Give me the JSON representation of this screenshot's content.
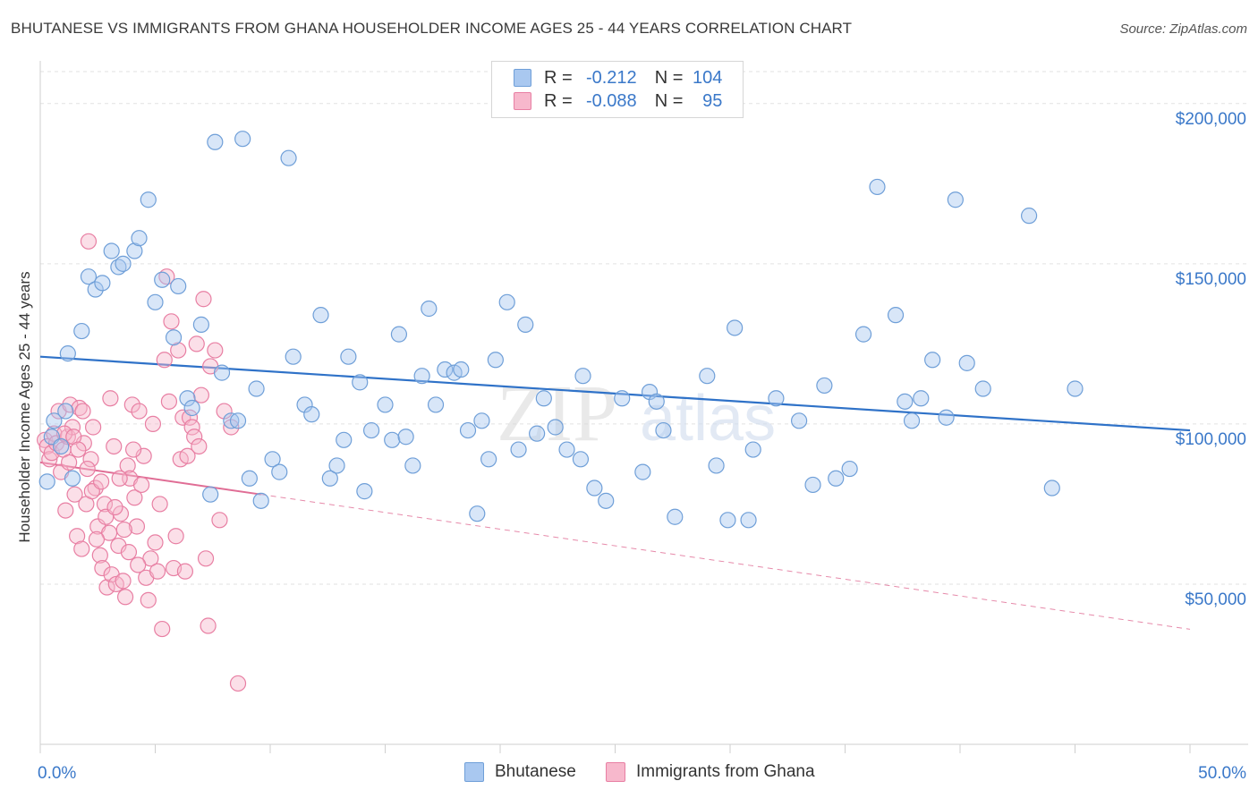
{
  "title": "BHUTANESE VS IMMIGRANTS FROM GHANA HOUSEHOLDER INCOME AGES 25 - 44 YEARS CORRELATION CHART",
  "source": "Source: ZipAtlas.com",
  "watermark": {
    "zip": "ZIP",
    "atlas": "atlas"
  },
  "legend": {
    "r_label": "R =",
    "n_label": "N =",
    "rows": [
      {
        "r": "-0.212",
        "n": "104"
      },
      {
        "r": "-0.088",
        "n": "95"
      }
    ]
  },
  "colors": {
    "blue_fill": "#a9c8f0",
    "blue_stroke": "#6f9fd8",
    "blue_line": "#2f72c8",
    "pink_fill": "#f7b8cc",
    "pink_stroke": "#e87fa3",
    "pink_line": "#e06d95",
    "axis_text": "#3a78c9",
    "grid": "#e2e2e2"
  },
  "chart_data": {
    "type": "scatter",
    "title": "BHUTANESE VS IMMIGRANTS FROM GHANA HOUSEHOLDER INCOME AGES 25 - 44 YEARS CORRELATION CHART",
    "xlabel": "",
    "ylabel": "Householder Income Ages 25 - 44 years",
    "xlim": [
      0,
      50
    ],
    "ylim": [
      0,
      210000
    ],
    "x_tick_labels": [
      "0.0%",
      "50.0%"
    ],
    "y_ticks": [
      50000,
      100000,
      150000,
      200000
    ],
    "y_tick_labels": [
      "$50,000",
      "$100,000",
      "$150,000",
      "$200,000"
    ],
    "grid": true,
    "legend_position": "top-center",
    "series": [
      {
        "name": "Bhutanese",
        "trend": {
          "x0": 0,
          "y0": 121000,
          "x1": 50,
          "y1": 98000,
          "dashed_to": 50
        },
        "points": [
          [
            0.5,
            96000
          ],
          [
            0.6,
            101000
          ],
          [
            0.9,
            93000
          ],
          [
            1.1,
            104000
          ],
          [
            1.2,
            122000
          ],
          [
            1.4,
            83000
          ],
          [
            1.8,
            129000
          ],
          [
            2.1,
            146000
          ],
          [
            2.4,
            142000
          ],
          [
            2.7,
            144000
          ],
          [
            3.1,
            154000
          ],
          [
            3.4,
            149000
          ],
          [
            3.6,
            150000
          ],
          [
            4.1,
            154000
          ],
          [
            4.3,
            158000
          ],
          [
            4.7,
            170000
          ],
          [
            5.0,
            138000
          ],
          [
            5.3,
            145000
          ],
          [
            5.8,
            127000
          ],
          [
            6.0,
            143000
          ],
          [
            6.4,
            108000
          ],
          [
            6.6,
            105000
          ],
          [
            7.0,
            131000
          ],
          [
            7.4,
            78000
          ],
          [
            7.6,
            188000
          ],
          [
            7.9,
            116000
          ],
          [
            8.3,
            101000
          ],
          [
            8.6,
            101000
          ],
          [
            8.8,
            189000
          ],
          [
            9.1,
            83000
          ],
          [
            9.4,
            111000
          ],
          [
            9.6,
            76000
          ],
          [
            10.1,
            89000
          ],
          [
            10.4,
            85000
          ],
          [
            10.8,
            183000
          ],
          [
            11.0,
            121000
          ],
          [
            11.5,
            106000
          ],
          [
            11.8,
            103000
          ],
          [
            12.2,
            134000
          ],
          [
            12.6,
            83000
          ],
          [
            12.9,
            87000
          ],
          [
            13.2,
            95000
          ],
          [
            13.4,
            121000
          ],
          [
            13.9,
            113000
          ],
          [
            14.1,
            79000
          ],
          [
            14.4,
            98000
          ],
          [
            15.0,
            106000
          ],
          [
            15.3,
            95000
          ],
          [
            15.6,
            128000
          ],
          [
            15.9,
            96000
          ],
          [
            16.2,
            87000
          ],
          [
            16.6,
            115000
          ],
          [
            16.9,
            136000
          ],
          [
            17.2,
            106000
          ],
          [
            17.6,
            117000
          ],
          [
            18.0,
            116000
          ],
          [
            18.3,
            117000
          ],
          [
            18.6,
            98000
          ],
          [
            19.0,
            72000
          ],
          [
            19.2,
            101000
          ],
          [
            19.5,
            89000
          ],
          [
            19.8,
            120000
          ],
          [
            20.3,
            138000
          ],
          [
            20.8,
            92000
          ],
          [
            21.1,
            131000
          ],
          [
            21.6,
            97000
          ],
          [
            21.9,
            108000
          ],
          [
            22.4,
            99000
          ],
          [
            22.9,
            92000
          ],
          [
            23.5,
            89000
          ],
          [
            23.6,
            115000
          ],
          [
            24.1,
            80000
          ],
          [
            24.6,
            76000
          ],
          [
            25.3,
            108000
          ],
          [
            26.2,
            85000
          ],
          [
            26.5,
            110000
          ],
          [
            26.8,
            107000
          ],
          [
            27.1,
            98000
          ],
          [
            27.6,
            71000
          ],
          [
            29.0,
            115000
          ],
          [
            29.4,
            87000
          ],
          [
            29.9,
            70000
          ],
          [
            30.2,
            130000
          ],
          [
            30.8,
            70000
          ],
          [
            31.0,
            92000
          ],
          [
            32.0,
            108000
          ],
          [
            33.0,
            101000
          ],
          [
            33.6,
            81000
          ],
          [
            34.1,
            112000
          ],
          [
            34.6,
            83000
          ],
          [
            35.2,
            86000
          ],
          [
            35.8,
            128000
          ],
          [
            36.4,
            174000
          ],
          [
            37.2,
            134000
          ],
          [
            37.6,
            107000
          ],
          [
            37.9,
            101000
          ],
          [
            38.3,
            108000
          ],
          [
            38.8,
            120000
          ],
          [
            39.4,
            102000
          ],
          [
            39.8,
            170000
          ],
          [
            40.3,
            119000
          ],
          [
            41.0,
            111000
          ],
          [
            43.0,
            165000
          ],
          [
            44.0,
            80000
          ],
          [
            45.0,
            111000
          ],
          [
            0.3,
            82000
          ]
        ]
      },
      {
        "name": "Immigrants from Ghana",
        "trend": {
          "x0": 0,
          "y0": 88000,
          "x1": 9.6,
          "y1": 78000,
          "dashed_to": 50
        },
        "points": [
          [
            0.2,
            95000
          ],
          [
            0.3,
            93000
          ],
          [
            0.4,
            89000
          ],
          [
            0.5,
            91000
          ],
          [
            0.6,
            97000
          ],
          [
            0.7,
            94000
          ],
          [
            0.8,
            104000
          ],
          [
            0.9,
            85000
          ],
          [
            1.0,
            92000
          ],
          [
            1.1,
            73000
          ],
          [
            1.2,
            96000
          ],
          [
            1.3,
            106000
          ],
          [
            1.4,
            99000
          ],
          [
            1.5,
            78000
          ],
          [
            1.6,
            65000
          ],
          [
            1.7,
            105000
          ],
          [
            1.8,
            61000
          ],
          [
            1.9,
            94000
          ],
          [
            2.0,
            75000
          ],
          [
            2.1,
            157000
          ],
          [
            2.2,
            89000
          ],
          [
            2.3,
            99000
          ],
          [
            2.4,
            80000
          ],
          [
            2.5,
            68000
          ],
          [
            2.6,
            59000
          ],
          [
            2.7,
            55000
          ],
          [
            2.8,
            75000
          ],
          [
            2.9,
            49000
          ],
          [
            3.0,
            66000
          ],
          [
            3.1,
            53000
          ],
          [
            3.2,
            93000
          ],
          [
            3.3,
            50000
          ],
          [
            3.4,
            62000
          ],
          [
            3.5,
            72000
          ],
          [
            3.6,
            51000
          ],
          [
            3.7,
            46000
          ],
          [
            3.8,
            87000
          ],
          [
            3.9,
            83000
          ],
          [
            4.0,
            106000
          ],
          [
            4.1,
            77000
          ],
          [
            4.2,
            68000
          ],
          [
            4.3,
            104000
          ],
          [
            4.4,
            81000
          ],
          [
            4.5,
            90000
          ],
          [
            4.6,
            52000
          ],
          [
            4.7,
            45000
          ],
          [
            4.8,
            58000
          ],
          [
            4.9,
            100000
          ],
          [
            5.0,
            63000
          ],
          [
            5.1,
            54000
          ],
          [
            5.2,
            75000
          ],
          [
            5.3,
            36000
          ],
          [
            5.4,
            120000
          ],
          [
            5.5,
            146000
          ],
          [
            5.6,
            107000
          ],
          [
            5.7,
            132000
          ],
          [
            5.8,
            55000
          ],
          [
            5.9,
            65000
          ],
          [
            6.0,
            123000
          ],
          [
            6.1,
            89000
          ],
          [
            6.2,
            102000
          ],
          [
            6.3,
            54000
          ],
          [
            6.4,
            90000
          ],
          [
            6.5,
            102000
          ],
          [
            6.6,
            99000
          ],
          [
            6.7,
            96000
          ],
          [
            6.8,
            125000
          ],
          [
            6.9,
            93000
          ],
          [
            7.0,
            109000
          ],
          [
            7.1,
            139000
          ],
          [
            7.2,
            58000
          ],
          [
            7.3,
            37000
          ],
          [
            7.4,
            118000
          ],
          [
            7.6,
            123000
          ],
          [
            7.8,
            70000
          ],
          [
            8.0,
            104000
          ],
          [
            8.3,
            99000
          ],
          [
            8.6,
            19000
          ],
          [
            1.05,
            97000
          ],
          [
            1.25,
            88000
          ],
          [
            1.45,
            96000
          ],
          [
            1.65,
            92000
          ],
          [
            1.85,
            104000
          ],
          [
            2.05,
            86000
          ],
          [
            2.25,
            79000
          ],
          [
            2.45,
            64000
          ],
          [
            2.65,
            82000
          ],
          [
            2.85,
            71000
          ],
          [
            3.05,
            108000
          ],
          [
            3.25,
            74000
          ],
          [
            3.45,
            83000
          ],
          [
            3.65,
            67000
          ],
          [
            3.85,
            60000
          ],
          [
            4.05,
            92000
          ],
          [
            4.25,
            56000
          ]
        ]
      }
    ]
  },
  "bottom_legend": [
    "Bhutanese",
    "Immigrants from Ghana"
  ]
}
